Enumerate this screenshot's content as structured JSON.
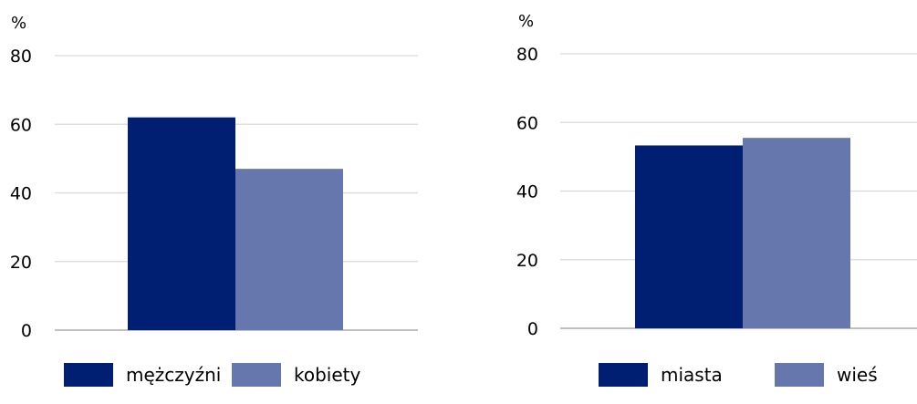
{
  "chart_data": [
    {
      "type": "bar",
      "ylabel": "%",
      "ylim": [
        0,
        80
      ],
      "yticks": [
        0,
        20,
        40,
        60,
        80
      ],
      "grid": true,
      "legend_placement": "bottom",
      "series": [
        {
          "name": "mężczyźni",
          "value": 62,
          "color": "#001f72"
        },
        {
          "name": "kobiety",
          "value": 47,
          "color": "#6677ad"
        }
      ]
    },
    {
      "type": "bar",
      "ylabel": "%",
      "ylim": [
        0,
        80
      ],
      "yticks": [
        0,
        20,
        40,
        60,
        80
      ],
      "grid": true,
      "legend_placement": "bottom",
      "series": [
        {
          "name": "miasta",
          "value": 53.3,
          "color": "#001f72"
        },
        {
          "name": "wieś",
          "value": 55.5,
          "color": "#6677ad"
        }
      ]
    }
  ]
}
